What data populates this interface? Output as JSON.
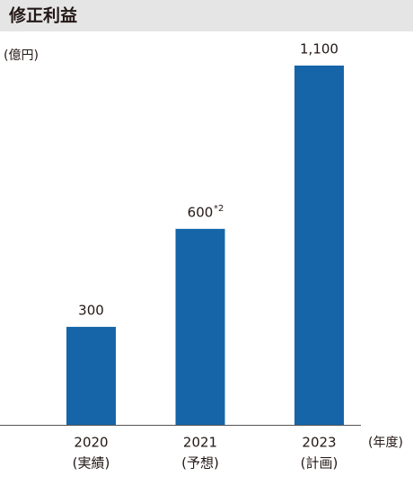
{
  "chart_data": {
    "type": "bar",
    "title": "修正利益",
    "y_unit": "(億円)",
    "x_unit": "(年度)",
    "categories": [
      "2020",
      "2021",
      "2023"
    ],
    "category_sublabels": [
      "(実績)",
      "(予想)",
      "(計画)"
    ],
    "values": [
      300,
      600,
      1100
    ],
    "value_labels": [
      "300",
      "600",
      "1,100"
    ],
    "value_label_notes": [
      null,
      "*2",
      null
    ],
    "color": "#1565a8",
    "ylim": [
      0,
      1100
    ]
  }
}
